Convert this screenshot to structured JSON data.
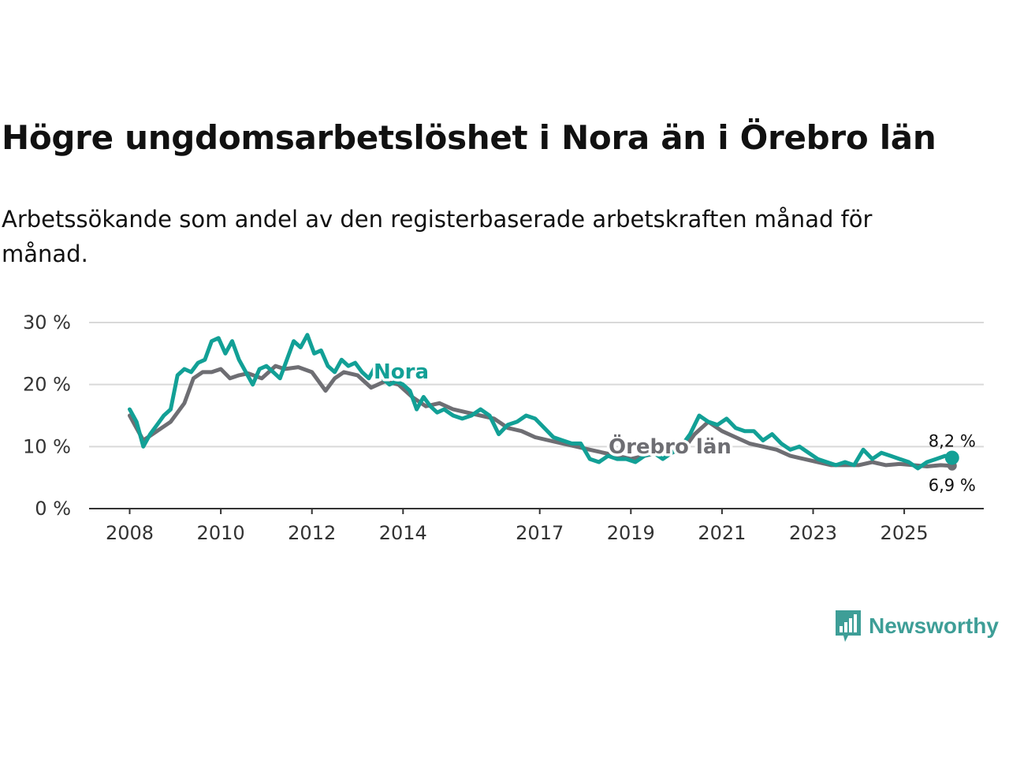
{
  "header": {
    "title": "Högre ungdomsarbetslöshet i Nora än i Örebro län",
    "subtitle": "Arbetssökande som andel av den registerbaserade arbetskraften månad för månad."
  },
  "brand": {
    "name": "Newsworthy",
    "color": "#3e9e97",
    "icon": "newsworthy-logo-icon"
  },
  "chart_data": {
    "type": "line",
    "title": "Högre ungdomsarbetslöshet i Nora än i Örebro län",
    "xlabel": "",
    "ylabel": "",
    "ylim": [
      0,
      30
    ],
    "xlim": [
      2007.4,
      2026.5
    ],
    "y_ticks": [
      0,
      10,
      20,
      30
    ],
    "y_tick_labels": [
      "0 %",
      "10 %",
      "20 %",
      "30 %"
    ],
    "x_ticks": [
      2008,
      2010,
      2012,
      2014,
      2017,
      2019,
      2021,
      2023,
      2025
    ],
    "x_tick_labels": [
      "2008",
      "2010",
      "2012",
      "2014",
      "2017",
      "2019",
      "2021",
      "2023",
      "2025"
    ],
    "grid": true,
    "series": [
      {
        "name": "Örebro län",
        "label": "Örebro län",
        "color": "#6e6e73",
        "end_label": "6,9 %",
        "x": [
          2008.0,
          2008.3,
          2008.6,
          2008.9,
          2009.2,
          2009.4,
          2009.6,
          2009.8,
          2010.0,
          2010.2,
          2010.4,
          2010.6,
          2010.9,
          2011.2,
          2011.4,
          2011.7,
          2012.0,
          2012.3,
          2012.5,
          2012.7,
          2013.0,
          2013.3,
          2013.6,
          2013.9,
          2014.2,
          2014.5,
          2014.8,
          2015.1,
          2015.4,
          2015.7,
          2016.0,
          2016.3,
          2016.6,
          2016.9,
          2017.2,
          2017.5,
          2017.8,
          2018.1,
          2018.4,
          2018.7,
          2019.0,
          2019.3,
          2019.6,
          2019.9,
          2020.2,
          2020.4,
          2020.7,
          2021.0,
          2021.3,
          2021.6,
          2021.9,
          2022.2,
          2022.5,
          2022.8,
          2023.1,
          2023.4,
          2023.7,
          2024.0,
          2024.3,
          2024.6,
          2024.9,
          2025.2,
          2025.5,
          2025.8,
          2026.05
        ],
        "values": [
          15.0,
          11.0,
          12.5,
          14.0,
          17.0,
          21.0,
          22.0,
          22.0,
          22.5,
          21.0,
          21.5,
          21.8,
          21.0,
          23.0,
          22.5,
          22.8,
          22.0,
          19.0,
          21.0,
          22.0,
          21.5,
          19.5,
          20.5,
          20.0,
          18.0,
          16.5,
          17.0,
          16.0,
          15.5,
          15.0,
          14.5,
          13.0,
          12.5,
          11.5,
          11.0,
          10.5,
          10.0,
          9.5,
          9.0,
          8.5,
          8.0,
          8.5,
          9.0,
          9.0,
          10.0,
          12.0,
          14.0,
          12.5,
          11.5,
          10.5,
          10.0,
          9.5,
          8.5,
          8.0,
          7.5,
          7.0,
          7.0,
          7.0,
          7.5,
          7.0,
          7.2,
          7.0,
          6.8,
          7.0,
          6.9
        ]
      },
      {
        "name": "Nora",
        "label": "Nora",
        "color": "#12a096",
        "end_label": "8,2 %",
        "x": [
          2008.0,
          2008.15,
          2008.3,
          2008.45,
          2008.6,
          2008.75,
          2008.9,
          2009.05,
          2009.2,
          2009.35,
          2009.5,
          2009.65,
          2009.8,
          2009.95,
          2010.1,
          2010.25,
          2010.4,
          2010.55,
          2010.7,
          2010.85,
          2011.0,
          2011.15,
          2011.3,
          2011.45,
          2011.6,
          2011.75,
          2011.9,
          2012.05,
          2012.2,
          2012.35,
          2012.5,
          2012.65,
          2012.8,
          2012.95,
          2013.1,
          2013.25,
          2013.4,
          2013.55,
          2013.7,
          2013.85,
          2014.0,
          2014.15,
          2014.3,
          2014.45,
          2014.6,
          2014.75,
          2014.9,
          2015.1,
          2015.3,
          2015.5,
          2015.7,
          2015.9,
          2016.1,
          2016.3,
          2016.5,
          2016.7,
          2016.9,
          2017.1,
          2017.3,
          2017.5,
          2017.7,
          2017.9,
          2018.1,
          2018.3,
          2018.5,
          2018.7,
          2018.9,
          2019.1,
          2019.3,
          2019.5,
          2019.7,
          2019.9,
          2020.1,
          2020.3,
          2020.5,
          2020.7,
          2020.9,
          2021.1,
          2021.3,
          2021.5,
          2021.7,
          2021.9,
          2022.1,
          2022.3,
          2022.5,
          2022.7,
          2022.9,
          2023.1,
          2023.3,
          2023.5,
          2023.7,
          2023.9,
          2024.1,
          2024.3,
          2024.5,
          2024.7,
          2024.9,
          2025.1,
          2025.3,
          2025.5,
          2025.7,
          2025.9,
          2026.05
        ],
        "values": [
          16.0,
          14.0,
          10.0,
          12.0,
          13.5,
          15.0,
          16.0,
          21.5,
          22.5,
          22.0,
          23.5,
          24.0,
          27.0,
          27.5,
          25.0,
          27.0,
          24.0,
          22.0,
          20.0,
          22.5,
          23.0,
          22.0,
          21.0,
          24.0,
          27.0,
          26.0,
          28.0,
          25.0,
          25.5,
          23.0,
          22.0,
          24.0,
          23.0,
          23.5,
          22.0,
          21.0,
          23.0,
          21.0,
          20.0,
          20.5,
          20.0,
          19.0,
          16.0,
          18.0,
          16.5,
          15.5,
          16.0,
          15.0,
          14.5,
          15.0,
          16.0,
          15.0,
          12.0,
          13.5,
          14.0,
          15.0,
          14.5,
          13.0,
          11.5,
          11.0,
          10.5,
          10.5,
          8.0,
          7.5,
          8.5,
          8.0,
          8.0,
          7.5,
          8.5,
          9.0,
          8.0,
          9.0,
          10.0,
          12.0,
          15.0,
          14.0,
          13.5,
          14.5,
          13.0,
          12.5,
          12.5,
          11.0,
          12.0,
          10.5,
          9.5,
          10.0,
          9.0,
          8.0,
          7.5,
          7.0,
          7.5,
          7.0,
          9.5,
          8.0,
          9.0,
          8.5,
          8.0,
          7.5,
          6.5,
          7.5,
          8.0,
          8.5,
          8.2
        ]
      }
    ]
  }
}
